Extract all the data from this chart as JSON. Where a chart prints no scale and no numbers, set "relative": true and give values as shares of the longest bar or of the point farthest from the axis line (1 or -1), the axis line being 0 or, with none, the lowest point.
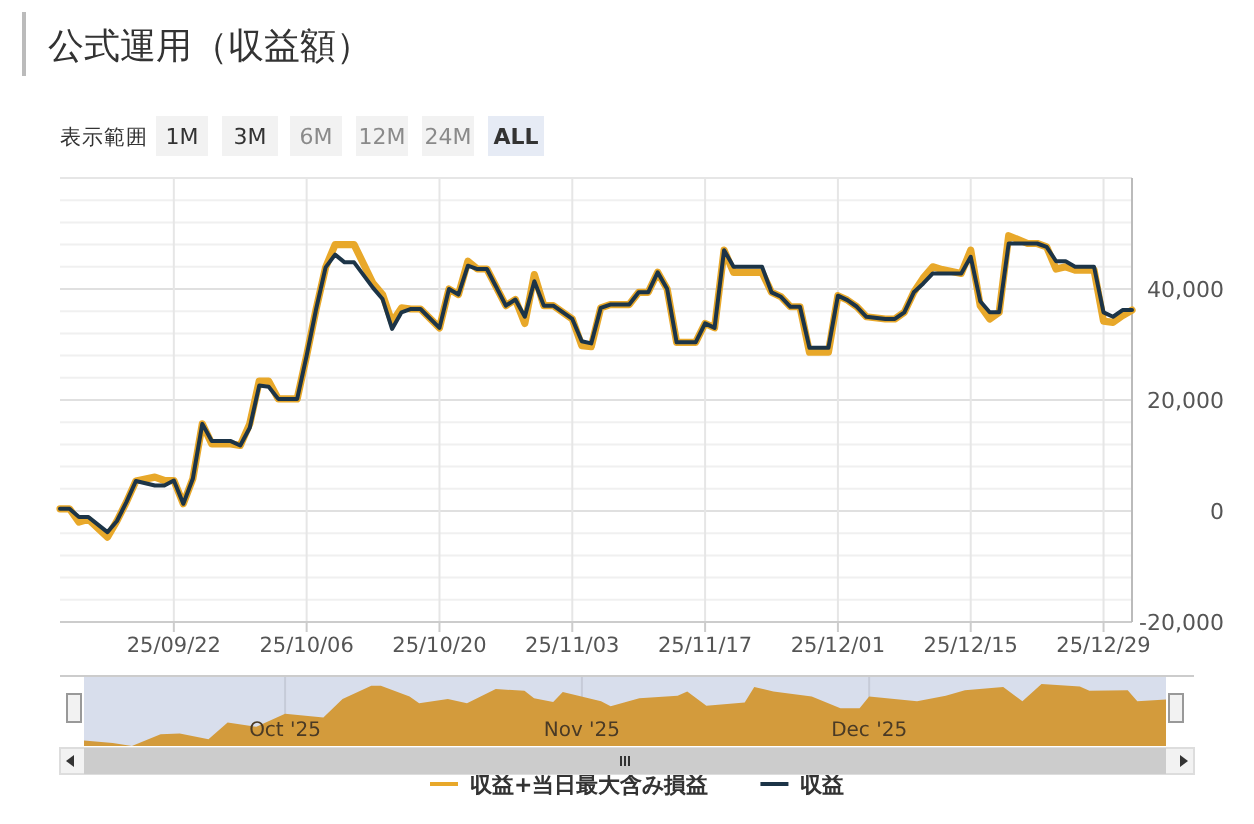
{
  "chart_data": [
    {
      "type": "line",
      "title": "公式運用（収益額）",
      "annotations": [
        "表示範囲",
        "1M",
        "3M",
        "6M",
        "12M",
        "24M",
        "ALL"
      ],
      "x": [
        "2025-09-10",
        "2025-09-11",
        "2025-09-12",
        "2025-09-13",
        "2025-09-15",
        "2025-09-16",
        "2025-09-17",
        "2025-09-18",
        "2025-09-20",
        "2025-09-21",
        "2025-09-22",
        "2025-09-23",
        "2025-09-24",
        "2025-09-25",
        "2025-09-26",
        "2025-09-28",
        "2025-09-29",
        "2025-09-30",
        "2025-10-01",
        "2025-10-02",
        "2025-10-03",
        "2025-10-05",
        "2025-10-06",
        "2025-10-07",
        "2025-10-08",
        "2025-10-09",
        "2025-10-10",
        "2025-10-11",
        "2025-10-13",
        "2025-10-14",
        "2025-10-15",
        "2025-10-16",
        "2025-10-17",
        "2025-10-18",
        "2025-10-20",
        "2025-10-21",
        "2025-10-22",
        "2025-10-23",
        "2025-10-24",
        "2025-10-25",
        "2025-10-27",
        "2025-10-28",
        "2025-10-29",
        "2025-10-30",
        "2025-10-31",
        "2025-11-01",
        "2025-11-03",
        "2025-11-04",
        "2025-11-05",
        "2025-11-06",
        "2025-11-07",
        "2025-11-09",
        "2025-11-10",
        "2025-11-11",
        "2025-11-12",
        "2025-11-13",
        "2025-11-14",
        "2025-11-16",
        "2025-11-17",
        "2025-11-18",
        "2025-11-19",
        "2025-11-20",
        "2025-11-21",
        "2025-11-23",
        "2025-11-24",
        "2025-11-25",
        "2025-11-26",
        "2025-11-27",
        "2025-11-28",
        "2025-11-30",
        "2025-12-01",
        "2025-12-02",
        "2025-12-03",
        "2025-12-04",
        "2025-12-06",
        "2025-12-07",
        "2025-12-08",
        "2025-12-09",
        "2025-12-10",
        "2025-12-11",
        "2025-12-12",
        "2025-12-14",
        "2025-12-15",
        "2025-12-16",
        "2025-12-17",
        "2025-12-18",
        "2025-12-19",
        "2025-12-21",
        "2025-12-22",
        "2025-12-23",
        "2025-12-24",
        "2025-12-25",
        "2025-12-26",
        "2025-12-28",
        "2025-12-29",
        "2025-12-30",
        "2025-12-31",
        "2026-01-01"
      ],
      "series": [
        {
          "name": "収益+当日最大含み損益",
          "color": "#e8a82a",
          "values": [
            400,
            400,
            -2000,
            -1500,
            -4700,
            -1800,
            1600,
            5400,
            6100,
            5500,
            5500,
            1300,
            5800,
            15700,
            12100,
            12100,
            11800,
            15700,
            23400,
            23400,
            20200,
            20200,
            28000,
            36400,
            43900,
            48000,
            48000,
            48000,
            41000,
            39000,
            34000,
            36600,
            36400,
            36400,
            33000,
            40000,
            39000,
            45000,
            43600,
            43600,
            37000,
            38100,
            33800,
            42600,
            37000,
            37000,
            34600,
            29800,
            29600,
            36600,
            37200,
            37200,
            39400,
            39400,
            43000,
            40000,
            30400,
            30400,
            33800,
            33000,
            47000,
            43000,
            43000,
            43000,
            39400,
            38600,
            36800,
            36800,
            28600,
            28600,
            38800,
            38000,
            36800,
            35000,
            34600,
            34600,
            35800,
            39400,
            42000,
            44000,
            43500,
            42800,
            47000,
            37000,
            34600,
            35800,
            49600,
            48200,
            48200,
            47600,
            43600,
            44000,
            43400,
            43400,
            34200,
            34000,
            35200,
            36200
          ]
        },
        {
          "name": "収益",
          "color": "#1c3447",
          "values": [
            400,
            400,
            -1100,
            -1100,
            -3800,
            -1800,
            1600,
            5400,
            4600,
            4600,
            5500,
            1300,
            5800,
            15700,
            12600,
            12600,
            11800,
            15000,
            22600,
            22400,
            20200,
            20200,
            28000,
            36400,
            43900,
            46200,
            44800,
            44800,
            40200,
            38200,
            32800,
            35800,
            36400,
            36400,
            33000,
            40000,
            39000,
            44200,
            43600,
            43600,
            37000,
            38100,
            35000,
            41400,
            37000,
            37000,
            34600,
            30600,
            30200,
            36600,
            37200,
            37200,
            39400,
            39400,
            43000,
            40000,
            30400,
            30400,
            33800,
            33000,
            47000,
            44000,
            44000,
            44000,
            39400,
            38600,
            36800,
            36800,
            29400,
            29400,
            38800,
            38000,
            36800,
            35000,
            34600,
            34600,
            35800,
            39400,
            41000,
            42800,
            42800,
            42800,
            45800,
            37800,
            35800,
            35800,
            48200,
            48200,
            48200,
            47600,
            45000,
            45000,
            44000,
            44000,
            35800,
            35000,
            36200,
            36200
          ]
        }
      ],
      "xlim": [
        "2025-09-10",
        "2026-01-01"
      ],
      "xticks": [
        {
          "value": "2025-09-22",
          "label": "25/09/22"
        },
        {
          "value": "2025-10-06",
          "label": "25/10/06"
        },
        {
          "value": "2025-10-20",
          "label": "25/10/20"
        },
        {
          "value": "2025-11-03",
          "label": "25/11/03"
        },
        {
          "value": "2025-11-17",
          "label": "25/11/17"
        },
        {
          "value": "2025-12-01",
          "label": "25/12/01"
        },
        {
          "value": "2025-12-15",
          "label": "25/12/15"
        },
        {
          "value": "2025-12-29",
          "label": "25/12/29"
        }
      ],
      "ylim": [
        -20000,
        60000
      ],
      "yticks": [
        {
          "value": -20000,
          "label": "-20,000"
        },
        {
          "value": -16000,
          "label": null
        },
        {
          "value": -12000,
          "label": null
        },
        {
          "value": -8000,
          "label": null
        },
        {
          "value": -4000,
          "label": null
        },
        0,
        {
          "value": 4000,
          "label": null
        },
        {
          "value": 8000,
          "label": null
        },
        {
          "value": 12000,
          "label": null
        },
        {
          "value": 16000,
          "label": null
        },
        {
          "value": 20000,
          "label": "20,000"
        },
        {
          "value": 24000,
          "label": null
        },
        {
          "value": 28000,
          "label": null
        },
        {
          "value": 32000,
          "label": null
        },
        {
          "value": 36000,
          "label": null
        },
        {
          "value": 40000,
          "label": "40,000"
        },
        {
          "value": 44000,
          "label": null
        },
        {
          "value": 48000,
          "label": null
        },
        {
          "value": 52000,
          "label": null
        },
        {
          "value": 56000,
          "label": null
        }
      ],
      "grid": true,
      "legend": "bottom"
    },
    {
      "type": "area",
      "relative": true,
      "color": "#d39b3c",
      "grid": "x",
      "x": [
        "2025-09-10",
        "2025-09-13",
        "2025-09-15",
        "2025-09-18",
        "2025-09-20",
        "2025-09-23",
        "2025-09-25",
        "2025-09-28",
        "2025-10-01",
        "2025-10-05",
        "2025-10-07",
        "2025-10-10",
        "2025-10-11",
        "2025-10-14",
        "2025-10-15",
        "2025-10-18",
        "2025-10-20",
        "2025-10-23",
        "2025-10-26",
        "2025-10-27",
        "2025-10-29",
        "2025-10-30",
        "2025-11-03",
        "2025-11-04",
        "2025-11-07",
        "2025-11-11",
        "2025-11-12",
        "2025-11-14",
        "2025-11-18",
        "2025-11-19",
        "2025-11-21",
        "2025-11-25",
        "2025-11-28",
        "2025-11-30",
        "2025-12-01",
        "2025-12-06",
        "2025-12-09",
        "2025-12-11",
        "2025-12-15",
        "2025-12-17",
        "2025-12-19",
        "2025-12-23",
        "2025-12-24",
        "2025-12-28",
        "2025-12-29",
        "2026-01-01"
      ],
      "values": [
        0.09,
        0.05,
        0,
        0.19,
        0.2,
        0.11,
        0.38,
        0.31,
        0.52,
        0.46,
        0.76,
        0.97,
        0.97,
        0.8,
        0.69,
        0.76,
        0.69,
        0.92,
        0.89,
        0.77,
        0.71,
        0.87,
        0.72,
        0.64,
        0.77,
        0.81,
        0.88,
        0.65,
        0.7,
        0.95,
        0.88,
        0.8,
        0.61,
        0.61,
        0.8,
        0.72,
        0.81,
        0.9,
        0.95,
        0.72,
        1,
        0.96,
        0.89,
        0.9,
        0.72,
        0.75
      ],
      "xlim": [
        "2025-09-10",
        "2026-01-01"
      ],
      "xticks": [
        {
          "value": "2025-10-01",
          "label": "Oct '25"
        },
        {
          "value": "2025-11-01",
          "label": "Nov '25"
        },
        {
          "value": "2025-12-01",
          "label": "Dec '25"
        }
      ]
    }
  ]
}
